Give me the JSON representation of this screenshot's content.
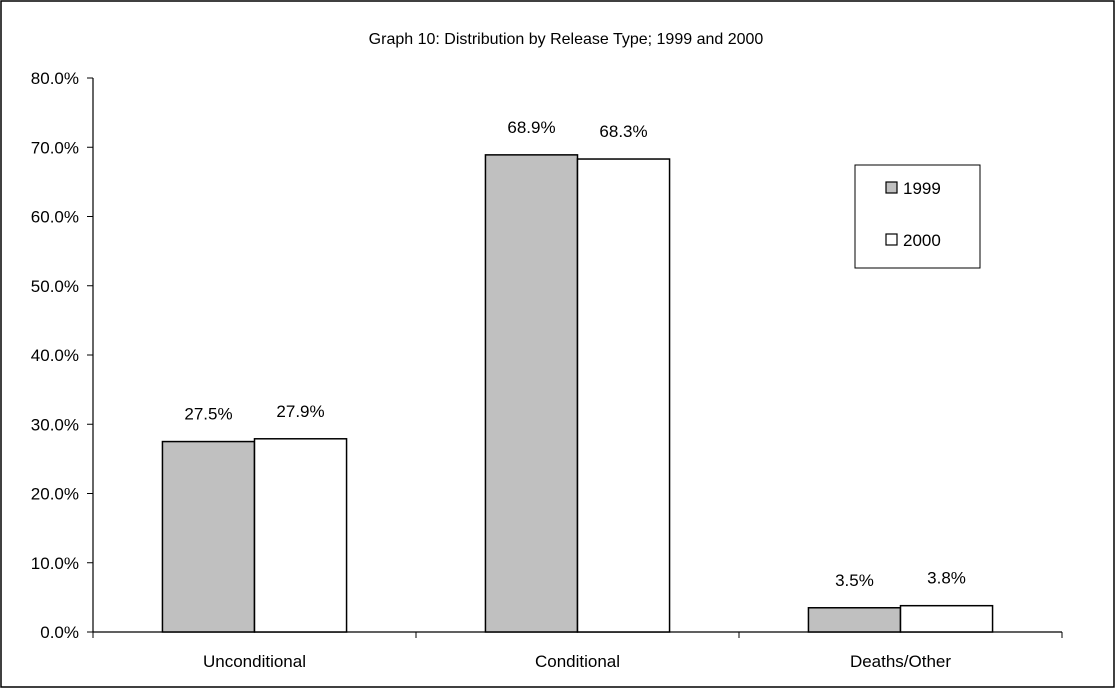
{
  "chart_data": {
    "type": "bar",
    "title": "Graph 10: Distribution by Release Type; 1999 and 2000",
    "xlabel": "",
    "ylabel": "",
    "categories": [
      "Unconditional",
      "Conditional",
      "Deaths/Other"
    ],
    "series": [
      {
        "name": "1999",
        "values": [
          27.5,
          68.9,
          3.5
        ],
        "labels": [
          "27.5%",
          "68.9%",
          "3.5%"
        ],
        "color": "#c0c0c0"
      },
      {
        "name": "2000",
        "values": [
          27.9,
          68.3,
          3.8
        ],
        "labels": [
          "27.9%",
          "68.3%",
          "3.8%"
        ],
        "color": "#ffffff"
      }
    ],
    "ylim": [
      0,
      80
    ],
    "yticks": [
      0,
      10,
      20,
      30,
      40,
      50,
      60,
      70,
      80
    ],
    "ytick_labels": [
      "0.0%",
      "10.0%",
      "20.0%",
      "30.0%",
      "40.0%",
      "50.0%",
      "60.0%",
      "70.0%",
      "80.0%"
    ],
    "grid": false,
    "legend_position": "right"
  }
}
